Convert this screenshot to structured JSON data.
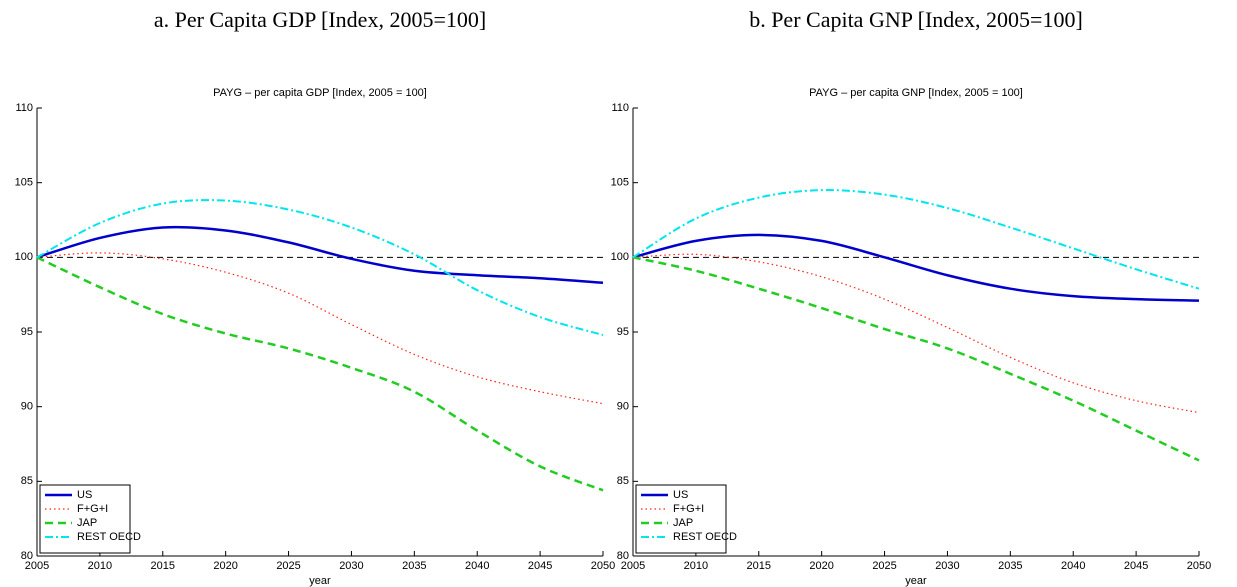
{
  "chart_data": [
    {
      "type": "line",
      "caption": "a. Per Capita GDP [Index, 2005=100]",
      "title": "PAYG – per capita GDP [Index, 2005 = 100]",
      "x_label": "year",
      "x": [
        2005,
        2010,
        2015,
        2020,
        2025,
        2030,
        2035,
        2040,
        2045,
        2050
      ],
      "xlim": [
        2005,
        2050
      ],
      "xticks": [
        2005,
        2010,
        2015,
        2020,
        2025,
        2030,
        2035,
        2040,
        2045,
        2050
      ],
      "ylim": [
        80,
        110
      ],
      "yticks": [
        80,
        85,
        90,
        95,
        100,
        105,
        110
      ],
      "reference_line": 100,
      "legend": "lower left",
      "series": [
        {
          "name": "US",
          "color": "#0000cc",
          "style": "solid",
          "values": [
            100,
            101.3,
            102.0,
            101.8,
            101.0,
            99.9,
            99.1,
            98.8,
            98.6,
            98.3
          ]
        },
        {
          "name": "F+G+I",
          "color": "#ff2020",
          "style": "dotted",
          "values": [
            100,
            100.3,
            99.9,
            99.0,
            97.6,
            95.5,
            93.5,
            92.0,
            91.0,
            90.2
          ]
        },
        {
          "name": "JAP",
          "color": "#22cc22",
          "style": "dashed",
          "values": [
            100,
            98.0,
            96.2,
            94.9,
            93.9,
            92.6,
            91.0,
            88.4,
            86.0,
            84.4
          ]
        },
        {
          "name": "REST OECD",
          "color": "#00e5ee",
          "style": "dashdot",
          "values": [
            100,
            102.3,
            103.6,
            103.8,
            103.2,
            102.0,
            100.2,
            97.8,
            96.0,
            94.8
          ]
        }
      ]
    },
    {
      "type": "line",
      "caption": "b. Per Capita GNP [Index, 2005=100]",
      "title": "PAYG – per capita GNP [Index, 2005 = 100]",
      "x_label": "year",
      "x": [
        2005,
        2010,
        2015,
        2020,
        2025,
        2030,
        2035,
        2040,
        2045,
        2050
      ],
      "xlim": [
        2005,
        2050
      ],
      "xticks": [
        2005,
        2010,
        2015,
        2020,
        2025,
        2030,
        2035,
        2040,
        2045,
        2050
      ],
      "ylim": [
        80,
        110
      ],
      "yticks": [
        80,
        85,
        90,
        95,
        100,
        105,
        110
      ],
      "reference_line": 100,
      "legend": "lower left",
      "series": [
        {
          "name": "US",
          "color": "#0000cc",
          "style": "solid",
          "values": [
            100,
            101.1,
            101.5,
            101.1,
            100.0,
            98.8,
            97.9,
            97.4,
            97.2,
            97.1
          ]
        },
        {
          "name": "F+G+I",
          "color": "#ff2020",
          "style": "dotted",
          "values": [
            100,
            100.2,
            99.7,
            98.7,
            97.2,
            95.3,
            93.3,
            91.6,
            90.4,
            89.6
          ]
        },
        {
          "name": "JAP",
          "color": "#22cc22",
          "style": "dashed",
          "values": [
            100,
            99.1,
            97.9,
            96.6,
            95.2,
            93.9,
            92.2,
            90.4,
            88.4,
            86.4
          ]
        },
        {
          "name": "REST OECD",
          "color": "#00e5ee",
          "style": "dashdot",
          "values": [
            100,
            102.6,
            104.0,
            104.5,
            104.2,
            103.3,
            102.0,
            100.6,
            99.2,
            97.9
          ]
        }
      ]
    }
  ]
}
